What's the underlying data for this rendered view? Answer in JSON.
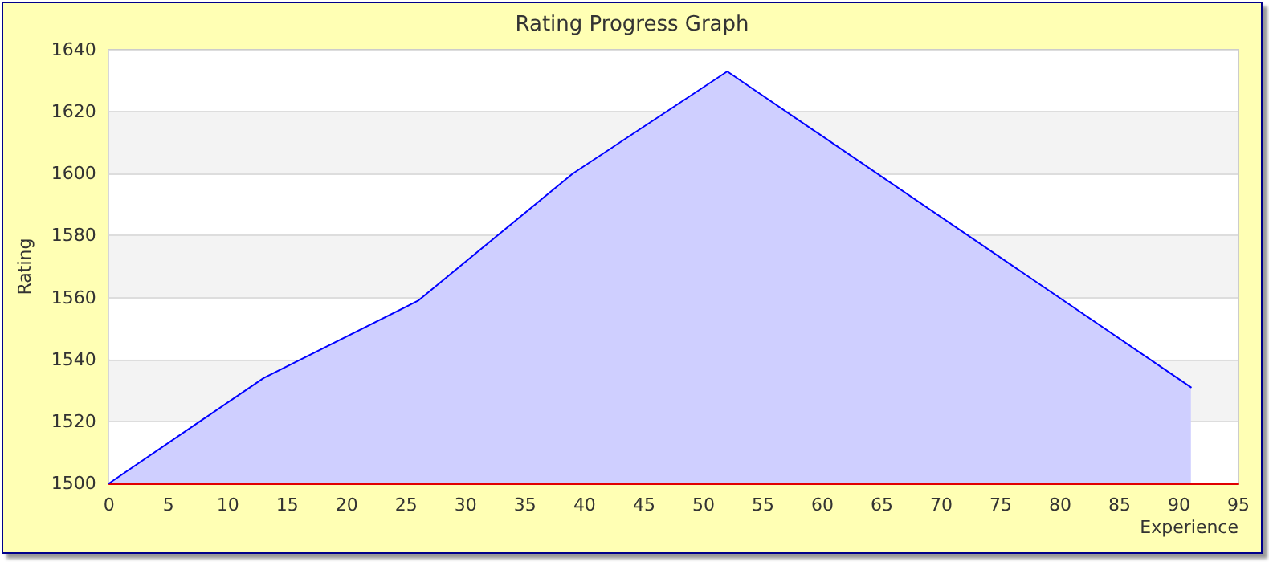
{
  "chart_data": {
    "type": "area",
    "title": "Rating Progress Graph",
    "xlabel": "Experience",
    "ylabel": "Rating",
    "x": [
      0,
      13,
      26,
      39,
      52,
      91
    ],
    "series": [
      {
        "color": "#0000ff",
        "values": [
          1500,
          1534,
          1559,
          1600,
          1633,
          1531
        ]
      }
    ],
    "xlim": [
      0,
      95
    ],
    "xticks": [
      0,
      5,
      10,
      15,
      20,
      25,
      30,
      35,
      40,
      45,
      50,
      55,
      60,
      65,
      70,
      75,
      80,
      85,
      90,
      95
    ],
    "ylim": [
      1500,
      1640
    ],
    "yticks": [
      1500,
      1520,
      1540,
      1560,
      1580,
      1600,
      1620,
      1640
    ],
    "grid": "y",
    "marker": "none",
    "line_style": "solid"
  }
}
